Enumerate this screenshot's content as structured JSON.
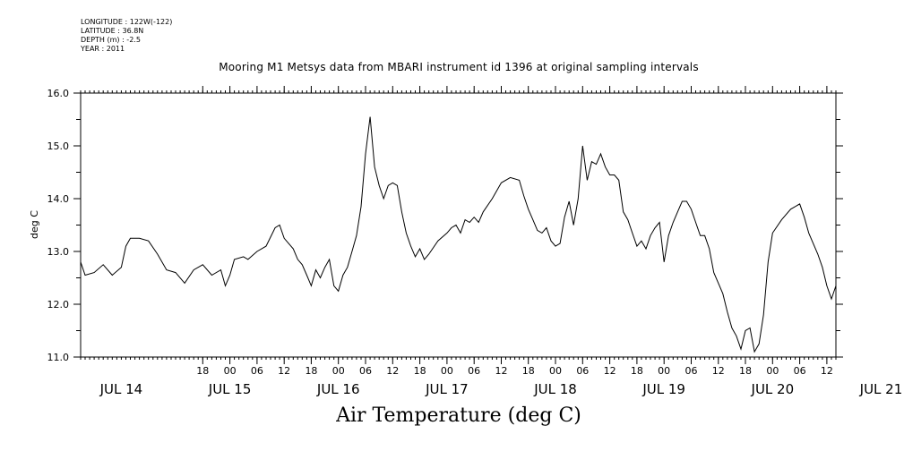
{
  "meta": {
    "longitude": "LONGITUDE : 122W(-122)",
    "latitude": "LATITUDE : 36.8N",
    "depth": "DEPTH (m) : -2.5",
    "year": "YEAR : 2011"
  },
  "chart_data": {
    "type": "line",
    "title": "Mooring M1 Metsys data from MBARI instrument id 1396 at original sampling intervals",
    "xlabel": "Air Temperature (deg C)",
    "ylabel": "deg C",
    "ylim": [
      11.0,
      16.0
    ],
    "yticks": [
      "11.0",
      "12.0",
      "13.0",
      "14.0",
      "15.0",
      "16.0"
    ],
    "xlim_hours": [
      -9,
      158
    ],
    "x_hour_ticks": [
      {
        "h": 18,
        "label": "18"
      },
      {
        "h": 24,
        "label": "00"
      },
      {
        "h": 30,
        "label": "06"
      },
      {
        "h": 36,
        "label": "12"
      },
      {
        "h": 42,
        "label": "18"
      },
      {
        "h": 48,
        "label": "00"
      },
      {
        "h": 54,
        "label": "06"
      },
      {
        "h": 60,
        "label": "12"
      },
      {
        "h": 66,
        "label": "18"
      },
      {
        "h": 72,
        "label": "00"
      },
      {
        "h": 78,
        "label": "06"
      },
      {
        "h": 84,
        "label": "12"
      },
      {
        "h": 90,
        "label": "18"
      },
      {
        "h": 96,
        "label": "00"
      },
      {
        "h": 102,
        "label": "06"
      },
      {
        "h": 108,
        "label": "12"
      },
      {
        "h": 114,
        "label": "18"
      },
      {
        "h": 120,
        "label": "00"
      },
      {
        "h": 126,
        "label": "06"
      },
      {
        "h": 132,
        "label": "12"
      },
      {
        "h": 138,
        "label": "18"
      },
      {
        "h": 144,
        "label": "00"
      },
      {
        "h": 150,
        "label": "06"
      },
      {
        "h": 156,
        "label": "12"
      }
    ],
    "day_labels": [
      {
        "h": 0,
        "label": "JUL 14"
      },
      {
        "h": 24,
        "label": "JUL 15"
      },
      {
        "h": 48,
        "label": "JUL 16"
      },
      {
        "h": 72,
        "label": "JUL 17"
      },
      {
        "h": 96,
        "label": "JUL 18"
      },
      {
        "h": 120,
        "label": "JUL 19"
      },
      {
        "h": 144,
        "label": "JUL 20"
      },
      {
        "h": 168,
        "label": "JUL 21"
      }
    ],
    "series": [
      {
        "points": [
          [
            -9,
            12.8
          ],
          [
            -8,
            12.55
          ],
          [
            -6,
            12.6
          ],
          [
            -4,
            12.75
          ],
          [
            -2,
            12.55
          ],
          [
            0,
            12.7
          ],
          [
            1,
            13.1
          ],
          [
            2,
            13.25
          ],
          [
            4,
            13.25
          ],
          [
            6,
            13.2
          ],
          [
            8,
            12.95
          ],
          [
            10,
            12.65
          ],
          [
            12,
            12.6
          ],
          [
            14,
            12.4
          ],
          [
            16,
            12.65
          ],
          [
            18,
            12.75
          ],
          [
            20,
            12.55
          ],
          [
            22,
            12.65
          ],
          [
            23,
            12.35
          ],
          [
            24,
            12.55
          ],
          [
            25,
            12.85
          ],
          [
            27,
            12.9
          ],
          [
            28,
            12.85
          ],
          [
            30,
            13.0
          ],
          [
            32,
            13.1
          ],
          [
            34,
            13.45
          ],
          [
            35,
            13.5
          ],
          [
            36,
            13.25
          ],
          [
            38,
            13.05
          ],
          [
            39,
            12.85
          ],
          [
            40,
            12.75
          ],
          [
            41,
            12.55
          ],
          [
            42,
            12.35
          ],
          [
            43,
            12.65
          ],
          [
            44,
            12.5
          ],
          [
            45,
            12.7
          ],
          [
            46,
            12.85
          ],
          [
            47,
            12.35
          ],
          [
            48,
            12.25
          ],
          [
            49,
            12.55
          ],
          [
            50,
            12.7
          ],
          [
            51,
            13.0
          ],
          [
            52,
            13.3
          ],
          [
            53,
            13.85
          ],
          [
            54,
            14.85
          ],
          [
            55,
            15.55
          ],
          [
            56,
            14.6
          ],
          [
            57,
            14.25
          ],
          [
            58,
            14.0
          ],
          [
            59,
            14.25
          ],
          [
            60,
            14.3
          ],
          [
            61,
            14.25
          ],
          [
            62,
            13.75
          ],
          [
            63,
            13.35
          ],
          [
            64,
            13.1
          ],
          [
            65,
            12.9
          ],
          [
            66,
            13.05
          ],
          [
            67,
            12.85
          ],
          [
            68,
            12.95
          ],
          [
            70,
            13.2
          ],
          [
            72,
            13.35
          ],
          [
            73,
            13.45
          ],
          [
            74,
            13.5
          ],
          [
            75,
            13.35
          ],
          [
            76,
            13.6
          ],
          [
            77,
            13.55
          ],
          [
            78,
            13.65
          ],
          [
            79,
            13.55
          ],
          [
            80,
            13.75
          ],
          [
            82,
            14.0
          ],
          [
            84,
            14.3
          ],
          [
            86,
            14.4
          ],
          [
            88,
            14.35
          ],
          [
            89,
            14.05
          ],
          [
            90,
            13.8
          ],
          [
            91,
            13.6
          ],
          [
            92,
            13.4
          ],
          [
            93,
            13.35
          ],
          [
            94,
            13.45
          ],
          [
            95,
            13.2
          ],
          [
            96,
            13.1
          ],
          [
            97,
            13.15
          ],
          [
            98,
            13.65
          ],
          [
            99,
            13.95
          ],
          [
            100,
            13.5
          ],
          [
            101,
            14.0
          ],
          [
            102,
            15.0
          ],
          [
            103,
            14.35
          ],
          [
            104,
            14.7
          ],
          [
            105,
            14.65
          ],
          [
            106,
            14.85
          ],
          [
            107,
            14.6
          ],
          [
            108,
            14.45
          ],
          [
            109,
            14.45
          ],
          [
            110,
            14.35
          ],
          [
            111,
            13.75
          ],
          [
            112,
            13.6
          ],
          [
            113,
            13.35
          ],
          [
            114,
            13.1
          ],
          [
            115,
            13.2
          ],
          [
            116,
            13.05
          ],
          [
            117,
            13.3
          ],
          [
            118,
            13.45
          ],
          [
            119,
            13.55
          ],
          [
            120,
            12.8
          ],
          [
            121,
            13.3
          ],
          [
            122,
            13.55
          ],
          [
            123,
            13.75
          ],
          [
            124,
            13.95
          ],
          [
            125,
            13.95
          ],
          [
            126,
            13.8
          ],
          [
            127,
            13.55
          ],
          [
            128,
            13.3
          ],
          [
            129,
            13.3
          ],
          [
            130,
            13.05
          ],
          [
            131,
            12.6
          ],
          [
            132,
            12.4
          ],
          [
            133,
            12.2
          ],
          [
            134,
            11.85
          ],
          [
            135,
            11.55
          ],
          [
            136,
            11.4
          ],
          [
            137,
            11.15
          ],
          [
            138,
            11.5
          ],
          [
            139,
            11.55
          ],
          [
            140,
            11.1
          ],
          [
            141,
            11.25
          ],
          [
            142,
            11.8
          ],
          [
            143,
            12.8
          ],
          [
            144,
            13.35
          ],
          [
            146,
            13.6
          ],
          [
            148,
            13.8
          ],
          [
            150,
            13.9
          ],
          [
            151,
            13.65
          ],
          [
            152,
            13.35
          ],
          [
            154,
            12.95
          ],
          [
            155,
            12.7
          ],
          [
            156,
            12.35
          ],
          [
            157,
            12.1
          ],
          [
            158,
            12.35
          ]
        ]
      }
    ]
  }
}
